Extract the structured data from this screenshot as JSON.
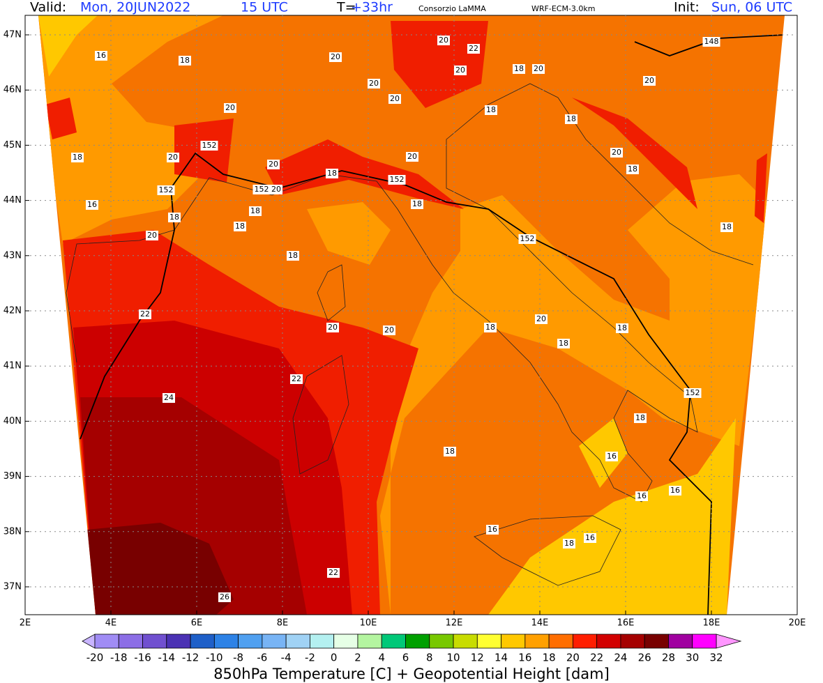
{
  "header": {
    "valid_label": "Valid:",
    "valid_date": "Mon, 20JUN2022",
    "valid_time": "15 UTC",
    "lead_label": "T=",
    "lead_value": "+33hr",
    "source": "Consorzio LaMMA",
    "model": "WRF-ECM-3.0km",
    "init_label": "Init:",
    "init_value": "Sun, 06 UTC"
  },
  "map": {
    "lat_labels": [
      "47N",
      "46N",
      "45N",
      "44N",
      "43N",
      "42N",
      "41N",
      "40N",
      "39N",
      "38N",
      "37N"
    ],
    "lon_labels": [
      "2E",
      "4E",
      "6E",
      "8E",
      "10E",
      "12E",
      "14E",
      "16E",
      "18E",
      "20E"
    ],
    "contour_labels": [
      16,
      18,
      20,
      20,
      22,
      20,
      18,
      20,
      20,
      148,
      20,
      20,
      20,
      18,
      18,
      18,
      20,
      152,
      20,
      20,
      20,
      18,
      18,
      152,
      152,
      20,
      152,
      16,
      18,
      18,
      18,
      18,
      20,
      18,
      152,
      18,
      22,
      18,
      20,
      18,
      20,
      20,
      18,
      22,
      152,
      24,
      18,
      18,
      16,
      16,
      16,
      16,
      16,
      18,
      22,
      26
    ]
  },
  "colorbar": {
    "title": "850hPa Temperature [C] + Geopotential Height [dam]",
    "levels": [
      -20,
      -18,
      -16,
      -14,
      -12,
      -10,
      -8,
      -6,
      -4,
      -2,
      0,
      2,
      4,
      6,
      8,
      10,
      12,
      14,
      16,
      18,
      20,
      22,
      24,
      26,
      28,
      30,
      32
    ],
    "colors": [
      "#a08cf5",
      "#8c6ee6",
      "#7050d0",
      "#4b32b4",
      "#1e5fc8",
      "#2d82e6",
      "#50a0f0",
      "#78b4f5",
      "#a0d2f5",
      "#b4f0f0",
      "#e6ffe6",
      "#b4f5a0",
      "#00c878",
      "#00a000",
      "#78c800",
      "#c8dc00",
      "#ffff32",
      "#ffc800",
      "#ffa000",
      "#ff6e00",
      "#ff1e00",
      "#d20000",
      "#a50000",
      "#780000",
      "#a000a0",
      "#ff00ff"
    ],
    "under_color": "#c8b4ff",
    "over_color": "#ff96ff"
  }
}
